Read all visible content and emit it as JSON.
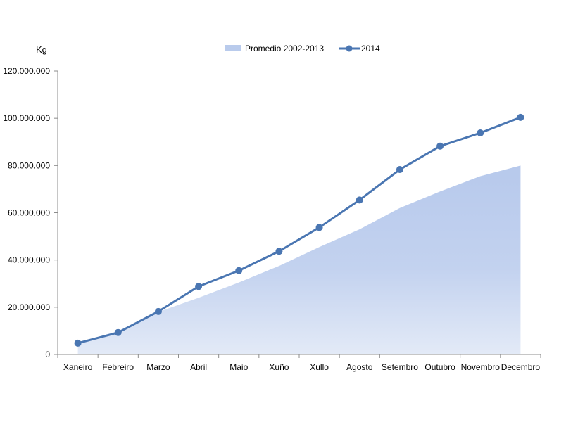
{
  "chart_data": {
    "type": "area",
    "ylabel": "Kg",
    "categories": [
      "Xaneiro",
      "Febreiro",
      "Marzo",
      "Abril",
      "Maio",
      "Xuño",
      "Xullo",
      "Agosto",
      "Setembro",
      "Outubro",
      "Novembro",
      "Decembro"
    ],
    "ylim": [
      0,
      120000000
    ],
    "yticks": [
      0,
      20000000,
      40000000,
      60000000,
      80000000,
      100000000,
      120000000
    ],
    "ytick_labels": [
      "0",
      "20.000.000",
      "40.000.000",
      "60.000.000",
      "80.000.000",
      "100.000.000",
      "120.000.000"
    ],
    "grid": false,
    "legend_position": "top",
    "series": [
      {
        "name": "Promedio 2002-2013",
        "type": "area",
        "color": "#b9cbec",
        "values": [
          4800000,
          10000000,
          18000000,
          24000000,
          30500000,
          37500000,
          45500000,
          53000000,
          62000000,
          69000000,
          75500000,
          80000000
        ]
      },
      {
        "name": "2014",
        "type": "line",
        "color": "#4a76b2",
        "values": [
          4800000,
          9300000,
          18200000,
          28800000,
          35500000,
          43700000,
          53800000,
          65400000,
          78300000,
          88200000,
          93800000,
          100400000
        ]
      }
    ]
  }
}
